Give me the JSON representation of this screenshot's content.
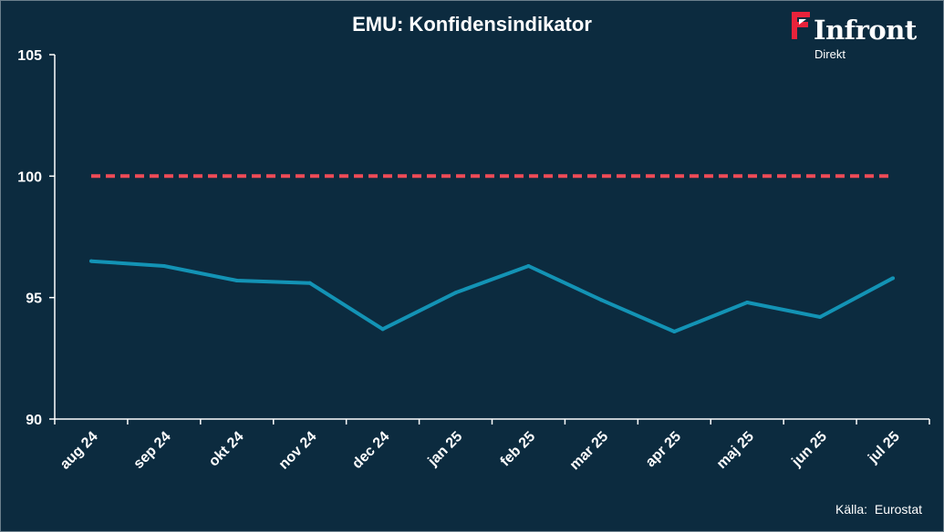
{
  "header": {
    "title": "EMU: Konfidensindikator"
  },
  "logo": {
    "name": "Infront",
    "sub": "Direkt",
    "accent_color": "#e8233b"
  },
  "footer": {
    "source_label": "Källa:",
    "source_value": "Eurostat"
  },
  "chart_data": {
    "type": "line",
    "categories": [
      "aug 24",
      "sep 24",
      "okt 24",
      "nov 24",
      "dec 24",
      "jan 25",
      "feb 25",
      "mar 25",
      "apr 25",
      "maj 25",
      "jun 25",
      "jul 25"
    ],
    "series": [
      {
        "values": [
          96.5,
          96.3,
          95.7,
          95.6,
          93.7,
          95.2,
          96.3,
          94.9,
          93.6,
          94.8,
          94.2,
          95.8
        ],
        "color": "#1393b5",
        "style": "solid"
      },
      {
        "values": [
          100,
          100,
          100,
          100,
          100,
          100,
          100,
          100,
          100,
          100,
          100,
          100
        ],
        "color": "#ef4b57",
        "style": "dashed"
      }
    ],
    "ylim": [
      90,
      105
    ],
    "yticks": [
      90,
      95,
      100,
      105
    ],
    "grid": false,
    "legend": "none"
  }
}
